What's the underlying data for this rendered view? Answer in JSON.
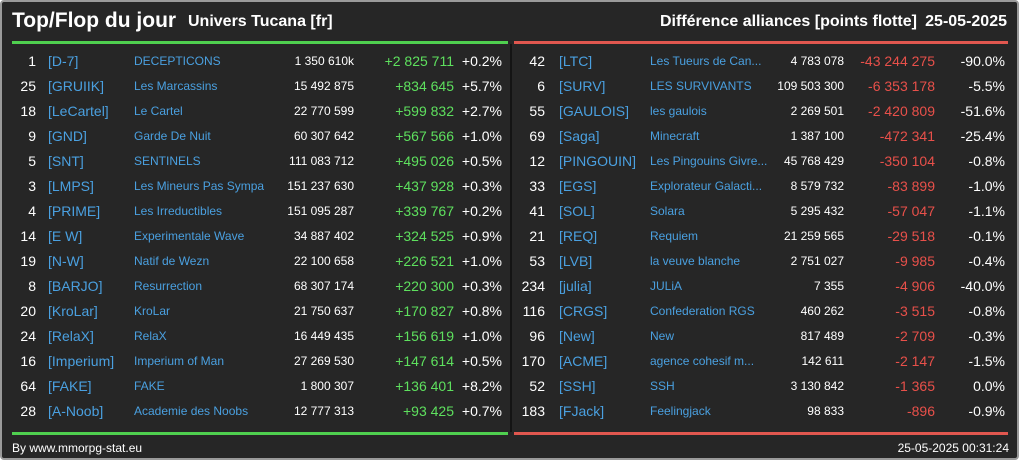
{
  "header": {
    "title": "Top/Flop du jour",
    "server": "Univers Tucana [fr]",
    "subtitle": "Différence alliances [points flotte]",
    "date": "25-05-2025"
  },
  "top": [
    {
      "rank": "1",
      "tag": "[D-7]",
      "name": "DECEPTICONS",
      "points": "1 350 610k",
      "change": "+2 825 711",
      "pct": "+0.2%"
    },
    {
      "rank": "25",
      "tag": "[GRUIIK]",
      "name": "Les Marcassins",
      "points": "15 492 875",
      "change": "+834 645",
      "pct": "+5.7%"
    },
    {
      "rank": "18",
      "tag": "[LeCartel]",
      "name": "Le Cartel",
      "points": "22 770 599",
      "change": "+599 832",
      "pct": "+2.7%"
    },
    {
      "rank": "9",
      "tag": "[GND]",
      "name": "Garde De Nuit",
      "points": "60 307 642",
      "change": "+567 566",
      "pct": "+1.0%"
    },
    {
      "rank": "5",
      "tag": "[SNT]",
      "name": "SENTINELS",
      "points": "111 083 712",
      "change": "+495 026",
      "pct": "+0.5%"
    },
    {
      "rank": "3",
      "tag": "[LMPS]",
      "name": "Les Mineurs Pas Sympa",
      "points": "151 237 630",
      "change": "+437 928",
      "pct": "+0.3%"
    },
    {
      "rank": "4",
      "tag": "[PRIME]",
      "name": "Les Irreductibles",
      "points": "151 095 287",
      "change": "+339 767",
      "pct": "+0.2%"
    },
    {
      "rank": "14",
      "tag": "[E W]",
      "name": "Experimentale Wave",
      "points": "34 887 402",
      "change": "+324 525",
      "pct": "+0.9%"
    },
    {
      "rank": "19",
      "tag": "[N-W]",
      "name": "Natif de Wezn",
      "points": "22 100 658",
      "change": "+226 521",
      "pct": "+1.0%"
    },
    {
      "rank": "8",
      "tag": "[BARJO]",
      "name": "Resurrection",
      "points": "68 307 174",
      "change": "+220 300",
      "pct": "+0.3%"
    },
    {
      "rank": "20",
      "tag": "[KroLar]",
      "name": "KroLar",
      "points": "21 750 637",
      "change": "+170 827",
      "pct": "+0.8%"
    },
    {
      "rank": "24",
      "tag": "[RelaX]",
      "name": "RelaX",
      "points": "16 449 435",
      "change": "+156 619",
      "pct": "+1.0%"
    },
    {
      "rank": "16",
      "tag": "[Imperium]",
      "name": "Imperium of Man",
      "points": "27 269 530",
      "change": "+147 614",
      "pct": "+0.5%"
    },
    {
      "rank": "64",
      "tag": "[FAKE]",
      "name": "FAKE",
      "points": "1 800 307",
      "change": "+136 401",
      "pct": "+8.2%"
    },
    {
      "rank": "28",
      "tag": "[A-Noob]",
      "name": "Academie des Noobs",
      "points": "12 777 313",
      "change": "+93 425",
      "pct": "+0.7%"
    }
  ],
  "flop": [
    {
      "rank": "42",
      "tag": "[LTC]",
      "name": "Les Tueurs de Can...",
      "points": "4 783 078",
      "change": "-43 244 275",
      "pct": "-90.0%"
    },
    {
      "rank": "6",
      "tag": "[SURV]",
      "name": "LES SURVIVANTS",
      "points": "109 503 300",
      "change": "-6 353 178",
      "pct": "-5.5%"
    },
    {
      "rank": "55",
      "tag": "[GAULOIS]",
      "name": "les gaulois",
      "points": "2 269 501",
      "change": "-2 420 809",
      "pct": "-51.6%"
    },
    {
      "rank": "69",
      "tag": "[Saga]",
      "name": "Minecraft",
      "points": "1 387 100",
      "change": "-472 341",
      "pct": "-25.4%"
    },
    {
      "rank": "12",
      "tag": "[PINGOUIN]",
      "name": "Les Pingouins Givre...",
      "points": "45 768 429",
      "change": "-350 104",
      "pct": "-0.8%"
    },
    {
      "rank": "33",
      "tag": "[EGS]",
      "name": "Explorateur Galacti...",
      "points": "8 579 732",
      "change": "-83 899",
      "pct": "-1.0%"
    },
    {
      "rank": "41",
      "tag": "[SOL]",
      "name": "Solara",
      "points": "5 295 432",
      "change": "-57 047",
      "pct": "-1.1%"
    },
    {
      "rank": "21",
      "tag": "[REQ]",
      "name": "Requiem",
      "points": "21 259 565",
      "change": "-29 518",
      "pct": "-0.1%"
    },
    {
      "rank": "53",
      "tag": "[LVB]",
      "name": "la veuve blanche",
      "points": "2 751 027",
      "change": "-9 985",
      "pct": "-0.4%"
    },
    {
      "rank": "234",
      "tag": "[julia]",
      "name": "JULiA",
      "points": "7 355",
      "change": "-4 906",
      "pct": "-40.0%"
    },
    {
      "rank": "116",
      "tag": "[CRGS]",
      "name": "Confederation RGS",
      "points": "460 262",
      "change": "-3 515",
      "pct": "-0.8%"
    },
    {
      "rank": "96",
      "tag": "[New]",
      "name": "New",
      "points": "817 489",
      "change": "-2 709",
      "pct": "-0.3%"
    },
    {
      "rank": "170",
      "tag": "[ACME]",
      "name": "agence cohesif m...",
      "points": "142 611",
      "change": "-2 147",
      "pct": "-1.5%"
    },
    {
      "rank": "52",
      "tag": "[SSH]",
      "name": "SSH",
      "points": "3 130 842",
      "change": "-1 365",
      "pct": "0.0%"
    },
    {
      "rank": "183",
      "tag": "[FJack]",
      "name": "Feelingjack",
      "points": "98 833",
      "change": "-896",
      "pct": "-0.9%"
    }
  ],
  "footer": {
    "source": "By www.mmorpg-stat.eu",
    "timestamp": "25-05-2025 00:31:24"
  },
  "colors": {
    "background": "#262626",
    "positive": "#5ee05e",
    "negative": "#e8504a",
    "link": "#4aa0e0",
    "top_bar": "#4fcf4f",
    "flop_bar": "#e0574f"
  }
}
